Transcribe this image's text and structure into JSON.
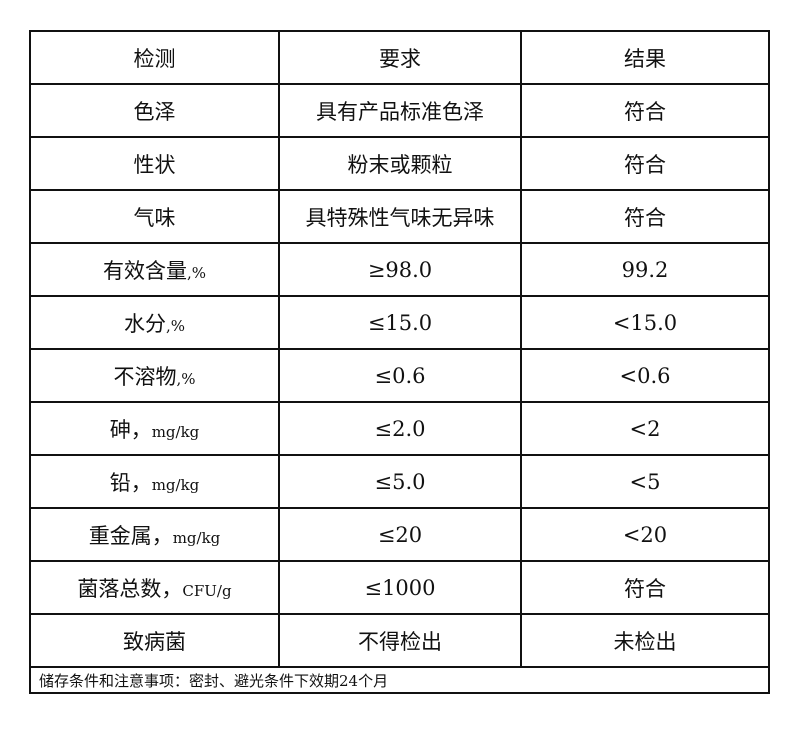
{
  "table": {
    "headers": [
      "检测",
      "要求",
      "结果"
    ],
    "rows": [
      {
        "item": "色泽",
        "unit": "",
        "requirement": "具有产品标准色泽",
        "result": "符合"
      },
      {
        "item": "性状",
        "unit": "",
        "requirement": "粉末或颗粒",
        "result": "符合"
      },
      {
        "item": "气味",
        "unit": "",
        "requirement": "具特殊性气味无异味",
        "result": "符合"
      },
      {
        "item": "有效含量",
        "unit": ",%",
        "requirement": "≥98.0",
        "result": "99.2"
      },
      {
        "item": "水分",
        "unit": ",%",
        "requirement": "≤15.0",
        "result": "<15.0"
      },
      {
        "item": "不溶物",
        "unit": ",%",
        "requirement": "≤0.6",
        "result": "<0.6"
      },
      {
        "item": "砷，",
        "unit": "mg/kg",
        "requirement": "≤2.0",
        "result": "<2"
      },
      {
        "item": "铅，",
        "unit": "mg/kg",
        "requirement": "≤5.0",
        "result": "<5"
      },
      {
        "item": "重金属，",
        "unit": "mg/kg",
        "requirement": "≤20",
        "result": "<20"
      },
      {
        "item": "菌落总数，",
        "unit": "CFU/g",
        "requirement": "≤1000",
        "result": "符合"
      },
      {
        "item": "致病菌",
        "unit": "",
        "requirement": "不得检出",
        "result": "未检出"
      }
    ],
    "footer": "储存条件和注意事项：密封、避光条件下效期24个月"
  }
}
